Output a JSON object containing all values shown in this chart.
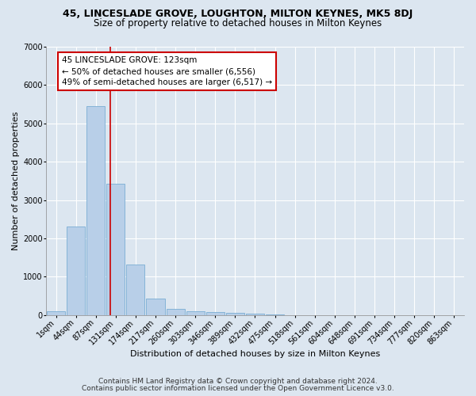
{
  "title1": "45, LINCESLADE GROVE, LOUGHTON, MILTON KEYNES, MK5 8DJ",
  "title2": "Size of property relative to detached houses in Milton Keynes",
  "xlabel": "Distribution of detached houses by size in Milton Keynes",
  "ylabel": "Number of detached properties",
  "bin_labels": [
    "1sqm",
    "44sqm",
    "87sqm",
    "131sqm",
    "174sqm",
    "217sqm",
    "260sqm",
    "303sqm",
    "346sqm",
    "389sqm",
    "432sqm",
    "475sqm",
    "518sqm",
    "561sqm",
    "604sqm",
    "648sqm",
    "691sqm",
    "734sqm",
    "777sqm",
    "820sqm",
    "863sqm"
  ],
  "bar_values": [
    100,
    2300,
    5450,
    3430,
    1320,
    430,
    170,
    90,
    70,
    50,
    30,
    10,
    5,
    0,
    0,
    0,
    0,
    0,
    0,
    0,
    0
  ],
  "bar_color": "#b8cfe8",
  "bar_edge_color": "#7aadd4",
  "vline_x": 2.73,
  "vline_color": "#cc0000",
  "annotation_text": "45 LINCESLADE GROVE: 123sqm\n← 50% of detached houses are smaller (6,556)\n49% of semi-detached houses are larger (6,517) →",
  "annotation_box_color": "#ffffff",
  "annotation_box_edge": "#cc0000",
  "ylim": [
    0,
    7000
  ],
  "yticks": [
    0,
    1000,
    2000,
    3000,
    4000,
    5000,
    6000,
    7000
  ],
  "bg_color": "#dce6f0",
  "plot_bg_color": "#dce6f0",
  "footer1": "Contains HM Land Registry data © Crown copyright and database right 2024.",
  "footer2": "Contains public sector information licensed under the Open Government Licence v3.0.",
  "title1_fontsize": 9,
  "title2_fontsize": 8.5,
  "xlabel_fontsize": 8,
  "ylabel_fontsize": 8,
  "annot_fontsize": 7.5,
  "tick_fontsize": 7,
  "footer_fontsize": 6.5
}
